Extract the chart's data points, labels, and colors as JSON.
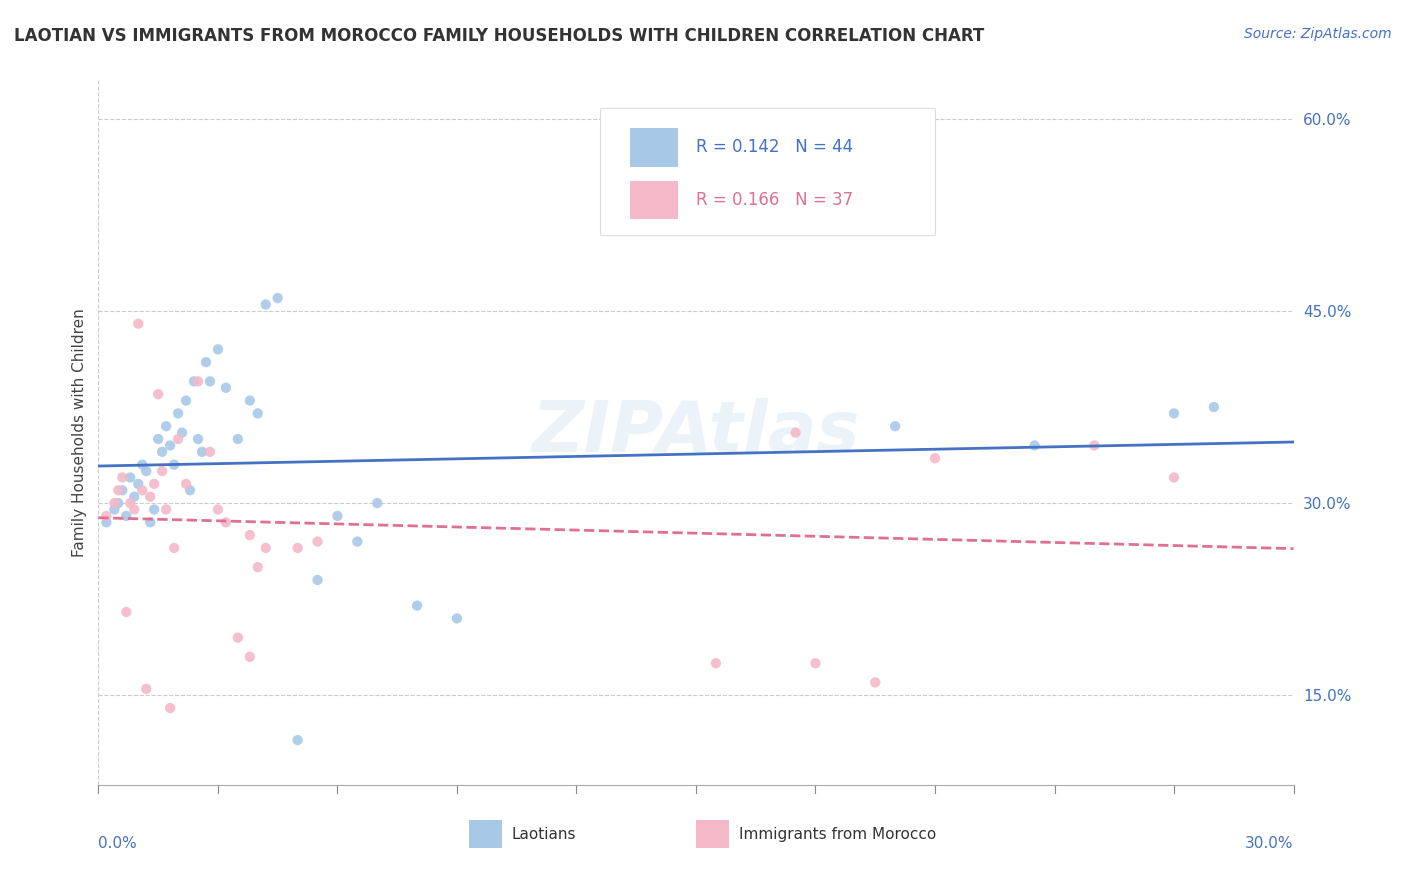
{
  "title": "LAOTIAN VS IMMIGRANTS FROM MOROCCO FAMILY HOUSEHOLDS WITH CHILDREN CORRELATION CHART",
  "source": "Source: ZipAtlas.com",
  "ylabel": "Family Households with Children",
  "xmin": 0.0,
  "xmax": 0.3,
  "ymin": 0.08,
  "ymax": 0.63,
  "yticks": [
    0.15,
    0.3,
    0.45,
    0.6
  ],
  "ytick_labels": [
    "15.0%",
    "30.0%",
    "45.0%",
    "60.0%"
  ],
  "series1_label": "Laotians",
  "series1_color": "#a8c8e8",
  "series1_line_color": "#4472c4",
  "series1_R": 0.142,
  "series1_N": 44,
  "series2_label": "Immigrants from Morocco",
  "series2_color": "#f4b8c8",
  "series2_line_color": "#e07090",
  "series2_R": 0.166,
  "series2_N": 37,
  "background_color": "#ffffff",
  "grid_color": "#cccccc",
  "scatter1_x": [
    0.002,
    0.004,
    0.005,
    0.006,
    0.007,
    0.008,
    0.009,
    0.01,
    0.011,
    0.012,
    0.013,
    0.014,
    0.015,
    0.016,
    0.017,
    0.018,
    0.019,
    0.02,
    0.021,
    0.022,
    0.023,
    0.024,
    0.025,
    0.026,
    0.027,
    0.028,
    0.03,
    0.032,
    0.035,
    0.038,
    0.04,
    0.042,
    0.045,
    0.05,
    0.055,
    0.06,
    0.065,
    0.07,
    0.08,
    0.09,
    0.2,
    0.235,
    0.27,
    0.28
  ],
  "scatter1_y": [
    0.285,
    0.295,
    0.3,
    0.31,
    0.29,
    0.32,
    0.305,
    0.315,
    0.33,
    0.325,
    0.285,
    0.295,
    0.35,
    0.34,
    0.36,
    0.345,
    0.33,
    0.37,
    0.355,
    0.38,
    0.31,
    0.395,
    0.35,
    0.34,
    0.41,
    0.395,
    0.42,
    0.39,
    0.35,
    0.38,
    0.37,
    0.455,
    0.46,
    0.115,
    0.24,
    0.29,
    0.27,
    0.3,
    0.22,
    0.21,
    0.36,
    0.345,
    0.37,
    0.375
  ],
  "scatter2_x": [
    0.002,
    0.004,
    0.005,
    0.006,
    0.007,
    0.008,
    0.009,
    0.01,
    0.011,
    0.012,
    0.013,
    0.014,
    0.015,
    0.016,
    0.017,
    0.018,
    0.019,
    0.02,
    0.022,
    0.025,
    0.028,
    0.03,
    0.032,
    0.035,
    0.038,
    0.04,
    0.042,
    0.05,
    0.055,
    0.175,
    0.21,
    0.25,
    0.27,
    0.038,
    0.18,
    0.195,
    0.155
  ],
  "scatter2_y": [
    0.29,
    0.3,
    0.31,
    0.32,
    0.215,
    0.3,
    0.295,
    0.44,
    0.31,
    0.155,
    0.305,
    0.315,
    0.385,
    0.325,
    0.295,
    0.14,
    0.265,
    0.35,
    0.315,
    0.395,
    0.34,
    0.295,
    0.285,
    0.195,
    0.275,
    0.25,
    0.265,
    0.265,
    0.27,
    0.355,
    0.335,
    0.345,
    0.32,
    0.18,
    0.175,
    0.16,
    0.175
  ]
}
